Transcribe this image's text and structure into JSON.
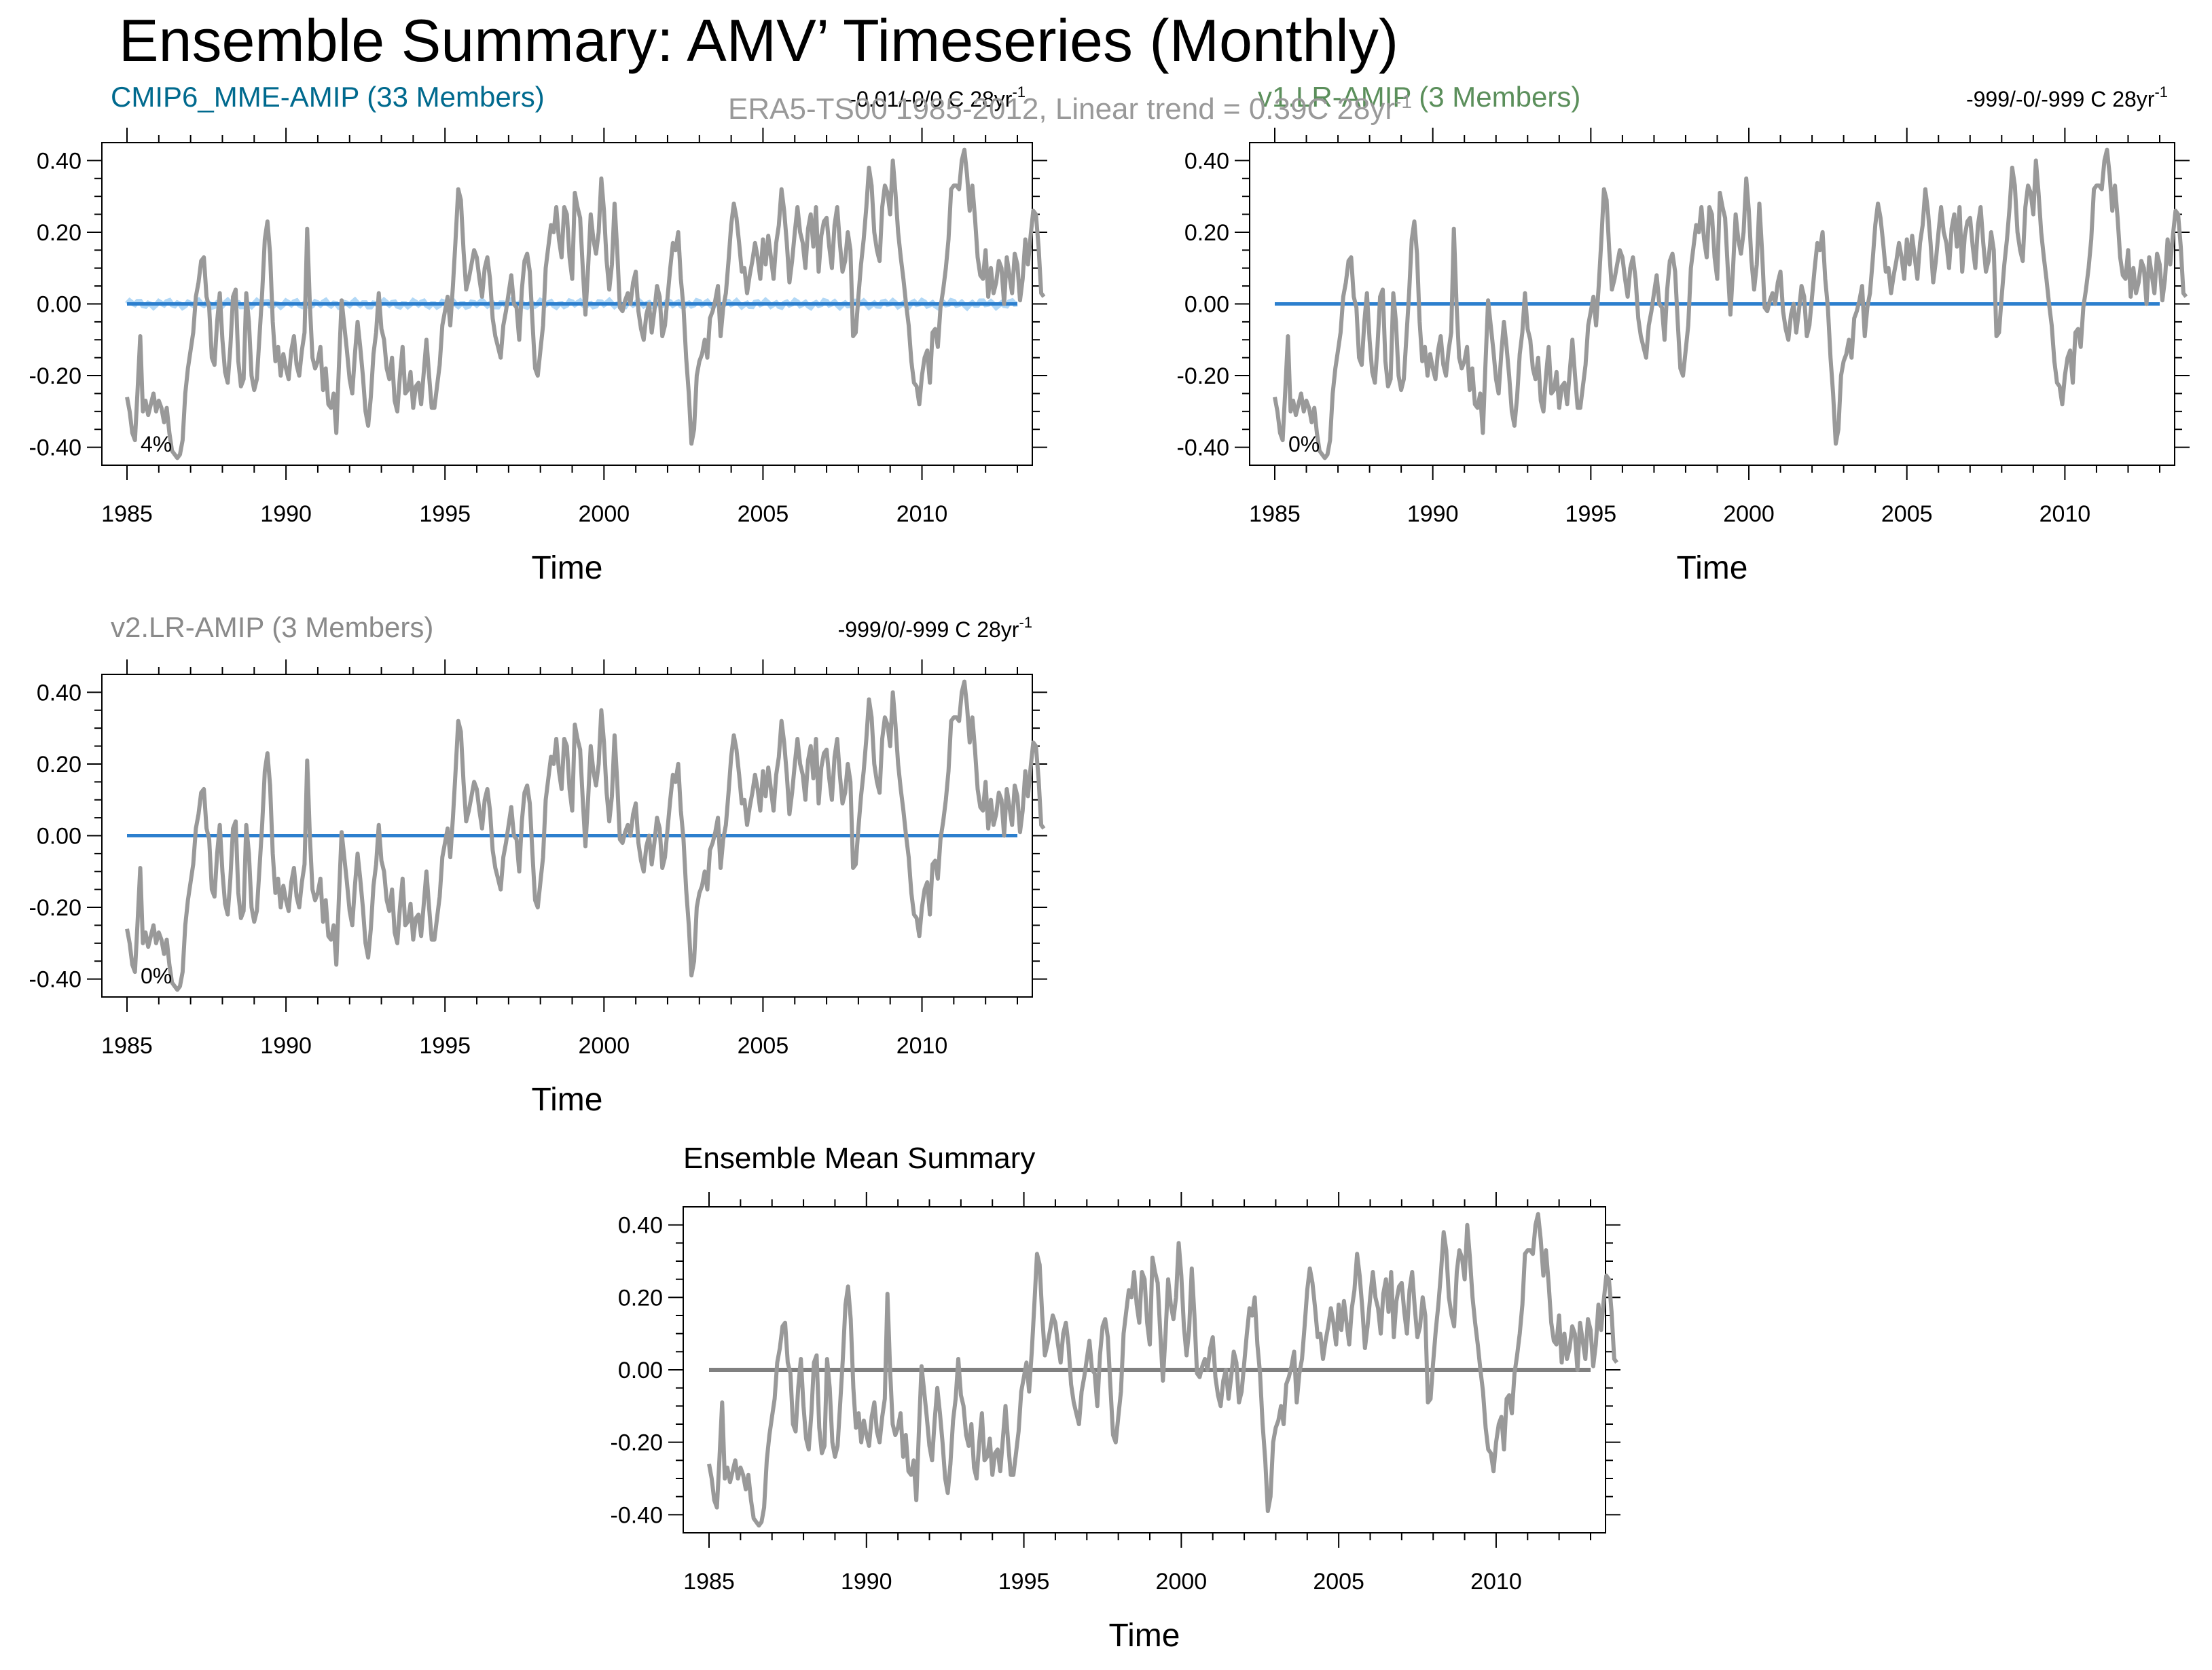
{
  "title": "Ensemble Summary: AMV’ Timeseries (Monthly)",
  "obs": {
    "label": "ERA5-TS00 1985-2012, Linear trend = 0.39C 28yr",
    "label_sup": "-1",
    "color": "#999999"
  },
  "chart_data": [
    {
      "type": "line",
      "title": "CMIP6_MME-AMIP (33 Members)",
      "title_color": "#006a8e",
      "trend_text": "-0.01/-0/0 C 28yr",
      "trend_sup": "-1",
      "pct_label": "4%",
      "xlabel": "Time",
      "ylabel": "",
      "xlim": [
        1985,
        2013
      ],
      "ylim": [
        -0.45,
        0.45
      ],
      "xticks": [
        "1985",
        "1990",
        "1995",
        "2000",
        "2005",
        "2010"
      ],
      "yticks": [
        "0.40",
        "0.20",
        "0.00",
        "-0.20",
        "-0.40"
      ],
      "model_color": "#2c7fce",
      "model_spread": true,
      "grid": false
    },
    {
      "type": "line",
      "title": "v1.LR-AMIP (3 Members)",
      "title_color": "#5b8f5b",
      "trend_text": "-999/-0/-999 C 28yr",
      "trend_sup": "-1",
      "pct_label": "0%",
      "xlabel": "Time",
      "ylabel": "",
      "xlim": [
        1985,
        2013
      ],
      "ylim": [
        -0.45,
        0.45
      ],
      "xticks": [
        "1985",
        "1990",
        "1995",
        "2000",
        "2005",
        "2010"
      ],
      "yticks": [
        "0.40",
        "0.20",
        "0.00",
        "-0.20",
        "-0.40"
      ],
      "model_color": "#2c7fce",
      "model_spread": false,
      "grid": false
    },
    {
      "type": "line",
      "title": "v2.LR-AMIP (3 Members)",
      "title_color": "#8a8a8a",
      "trend_text": "-999/0/-999 C 28yr",
      "trend_sup": "-1",
      "pct_label": "0%",
      "xlabel": "Time",
      "ylabel": "",
      "xlim": [
        1985,
        2013
      ],
      "ylim": [
        -0.45,
        0.45
      ],
      "xticks": [
        "1985",
        "1990",
        "1995",
        "2000",
        "2005",
        "2010"
      ],
      "yticks": [
        "0.40",
        "0.20",
        "0.00",
        "-0.20",
        "-0.40"
      ],
      "model_color": "#2c7fce",
      "model_spread": false,
      "grid": false
    },
    {
      "type": "line",
      "title": "Ensemble Mean Summary",
      "title_color": "#000000",
      "trend_text": "",
      "trend_sup": "",
      "pct_label": "",
      "xlabel": "Time",
      "ylabel": "",
      "xlim": [
        1985,
        2013
      ],
      "ylim": [
        -0.45,
        0.45
      ],
      "xticks": [
        "1985",
        "1990",
        "1995",
        "2000",
        "2005",
        "2010"
      ],
      "yticks": [
        "0.40",
        "0.20",
        "0.00",
        "-0.20",
        "-0.40"
      ],
      "model_color": "#808080",
      "model_spread": false,
      "grid": false
    }
  ],
  "obs_series": {
    "t0": 1985.0,
    "dt": 0.0833,
    "values": [
      -0.26,
      -0.3,
      -0.36,
      -0.38,
      -0.24,
      -0.09,
      -0.3,
      -0.27,
      -0.31,
      -0.28,
      -0.25,
      -0.3,
      -0.27,
      -0.29,
      -0.33,
      -0.29,
      -0.36,
      -0.41,
      -0.42,
      -0.43,
      -0.42,
      -0.38,
      -0.25,
      -0.18,
      -0.13,
      -0.08,
      0.02,
      0.06,
      0.12,
      0.13,
      0.02,
      -0.01,
      -0.15,
      -0.17,
      -0.05,
      0.03,
      -0.1,
      -0.19,
      -0.22,
      -0.12,
      0.02,
      0.04,
      -0.16,
      -0.23,
      -0.21,
      0.03,
      -0.05,
      -0.2,
      -0.24,
      -0.21,
      -0.09,
      0.03,
      0.18,
      0.23,
      0.14,
      -0.05,
      -0.16,
      -0.12,
      -0.2,
      -0.14,
      -0.18,
      -0.21,
      -0.13,
      -0.09,
      -0.17,
      -0.2,
      -0.13,
      -0.08,
      0.21,
      0.0,
      -0.15,
      -0.18,
      -0.16,
      -0.12,
      -0.24,
      -0.18,
      -0.28,
      -0.29,
      -0.25,
      -0.36,
      -0.17,
      0.01,
      -0.06,
      -0.13,
      -0.21,
      -0.25,
      -0.14,
      -0.05,
      -0.12,
      -0.2,
      -0.3,
      -0.34,
      -0.26,
      -0.14,
      -0.08,
      0.03,
      -0.07,
      -0.1,
      -0.18,
      -0.21,
      -0.15,
      -0.27,
      -0.3,
      -0.2,
      -0.12,
      -0.25,
      -0.24,
      -0.19,
      -0.29,
      -0.23,
      -0.22,
      -0.28,
      -0.19,
      -0.1,
      -0.2,
      -0.29,
      -0.29,
      -0.23,
      -0.17,
      -0.06,
      -0.02,
      0.02,
      -0.06,
      0.05,
      0.18,
      0.32,
      0.29,
      0.15,
      0.04,
      0.07,
      0.11,
      0.15,
      0.13,
      0.07,
      0.02,
      0.1,
      0.13,
      0.07,
      -0.04,
      -0.09,
      -0.12,
      -0.15,
      -0.06,
      -0.02,
      0.03,
      0.08,
      0.0,
      -0.01,
      -0.1,
      0.04,
      0.12,
      0.14,
      0.09,
      -0.05,
      -0.18,
      -0.2,
      -0.13,
      -0.06,
      0.1,
      0.16,
      0.22,
      0.2,
      0.27,
      0.18,
      0.13,
      0.27,
      0.25,
      0.13,
      0.07,
      0.31,
      0.27,
      0.24,
      0.1,
      -0.03,
      0.1,
      0.25,
      0.18,
      0.14,
      0.2,
      0.35,
      0.26,
      0.12,
      0.04,
      0.11,
      0.28,
      0.15,
      -0.01,
      -0.02,
      0.01,
      0.03,
      0.0,
      0.06,
      0.09,
      -0.02,
      -0.07,
      -0.1,
      -0.03,
      0.0,
      -0.08,
      -0.02,
      0.05,
      0.02,
      -0.09,
      -0.06,
      0.02,
      0.1,
      0.17,
      0.15,
      0.2,
      0.07,
      -0.01,
      -0.15,
      -0.25,
      -0.39,
      -0.35,
      -0.2,
      -0.16,
      -0.14,
      -0.1,
      -0.15,
      -0.04,
      -0.02,
      0.01,
      0.05,
      -0.09,
      -0.01,
      0.03,
      0.12,
      0.22,
      0.28,
      0.24,
      0.17,
      0.09,
      0.1,
      0.03,
      0.08,
      0.12,
      0.17,
      0.13,
      0.07,
      0.18,
      0.11,
      0.19,
      0.13,
      0.07,
      0.17,
      0.22,
      0.32,
      0.26,
      0.17,
      0.06,
      0.12,
      0.2,
      0.27,
      0.2,
      0.17,
      0.1,
      0.21,
      0.25,
      0.16,
      0.27,
      0.09,
      0.19,
      0.23,
      0.24,
      0.16,
      0.1,
      0.22,
      0.27,
      0.17,
      0.09,
      0.12,
      0.2,
      0.15,
      -0.09,
      -0.08,
      0.02,
      0.11,
      0.18,
      0.27,
      0.38,
      0.33,
      0.2,
      0.15,
      0.12,
      0.27,
      0.33,
      0.31,
      0.25,
      0.4,
      0.31,
      0.2,
      0.13,
      0.07,
      0.0,
      -0.06,
      -0.16,
      -0.22,
      -0.23,
      -0.28,
      -0.2,
      -0.15,
      -0.13,
      -0.22,
      -0.08,
      -0.07,
      -0.12,
      -0.01,
      0.04,
      0.1,
      0.18,
      0.32,
      0.33,
      0.33,
      0.32,
      0.4,
      0.43,
      0.36,
      0.26,
      0.33,
      0.24,
      0.13,
      0.08,
      0.07,
      0.15,
      0.02,
      0.1,
      0.03,
      0.06,
      0.12,
      0.1,
      0.0,
      0.13,
      0.08,
      0.03,
      0.14,
      0.11,
      0.01,
      0.07,
      0.18,
      0.11,
      0.19,
      0.26,
      0.25,
      0.16,
      0.03,
      0.02
    ]
  }
}
